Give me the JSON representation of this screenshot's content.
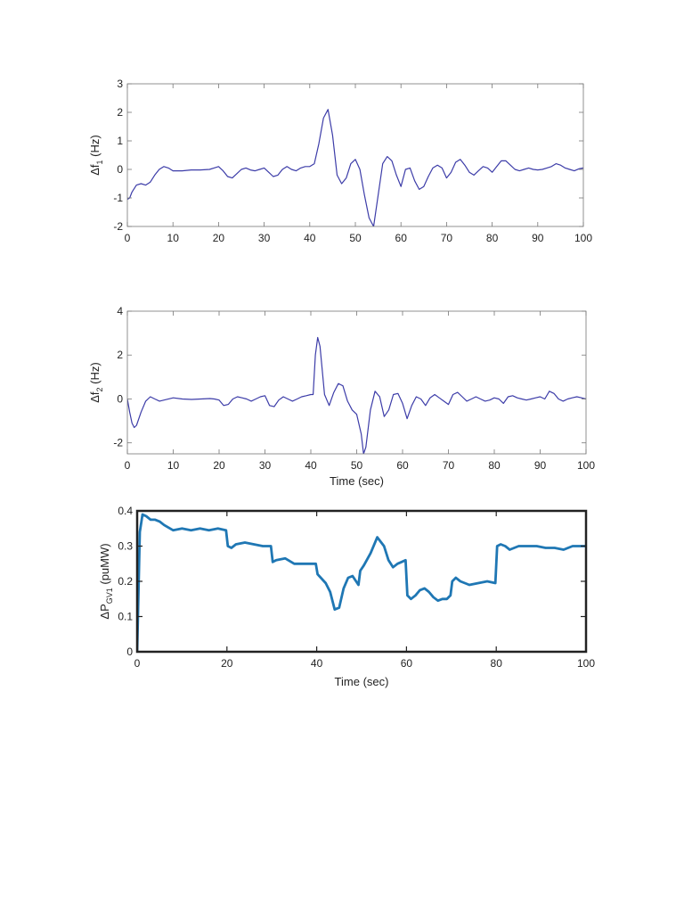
{
  "chart_data": [
    {
      "type": "line",
      "ylabel_main": "Δf",
      "ylabel_sub": "1",
      "ylabel_unit": " (Hz)",
      "xlabel": "",
      "xlim": [
        0,
        100
      ],
      "ylim": [
        -2,
        3
      ],
      "xticks": [
        0,
        10,
        20,
        30,
        40,
        50,
        60,
        70,
        80,
        90,
        100
      ],
      "yticks": [
        -2,
        -1,
        0,
        1,
        2,
        3
      ],
      "grid": false,
      "line_color": "#3c3ca8",
      "series": [
        {
          "x": [
            0,
            0.5,
            1,
            2,
            3,
            4,
            5,
            6,
            7,
            8,
            9,
            10,
            12,
            14,
            16,
            18,
            19,
            20,
            21,
            22,
            23,
            24,
            25,
            26,
            27,
            28,
            29,
            30,
            31,
            32,
            33,
            34,
            35,
            36,
            37,
            38,
            39,
            40,
            41,
            42,
            43,
            44,
            45,
            46,
            47,
            48,
            49,
            50,
            51,
            52,
            53,
            54,
            55,
            56,
            57,
            58,
            59,
            60,
            61,
            62,
            63,
            64,
            65,
            66,
            67,
            68,
            69,
            70,
            71,
            72,
            73,
            74,
            75,
            76,
            77,
            78,
            79,
            80,
            81,
            82,
            83,
            84,
            85,
            86,
            87,
            88,
            89,
            90,
            91,
            92,
            93,
            94,
            95,
            96,
            97,
            98,
            99,
            100
          ],
          "y": [
            -1.05,
            -1.0,
            -0.8,
            -0.55,
            -0.5,
            -0.55,
            -0.45,
            -0.2,
            0.0,
            0.1,
            0.05,
            -0.05,
            -0.05,
            -0.02,
            -0.02,
            0.0,
            0.05,
            0.1,
            -0.05,
            -0.25,
            -0.3,
            -0.15,
            0.0,
            0.05,
            -0.02,
            -0.05,
            0.0,
            0.05,
            -0.1,
            -0.25,
            -0.2,
            0.0,
            0.1,
            0.0,
            -0.05,
            0.05,
            0.1,
            0.1,
            0.2,
            0.9,
            1.8,
            2.1,
            1.2,
            -0.2,
            -0.5,
            -0.3,
            0.2,
            0.35,
            0.0,
            -0.9,
            -1.7,
            -2.0,
            -0.9,
            0.2,
            0.45,
            0.3,
            -0.2,
            -0.6,
            0.0,
            0.05,
            -0.4,
            -0.7,
            -0.6,
            -0.25,
            0.05,
            0.15,
            0.05,
            -0.3,
            -0.1,
            0.25,
            0.35,
            0.15,
            -0.1,
            -0.2,
            -0.05,
            0.1,
            0.05,
            -0.1,
            0.1,
            0.3,
            0.3,
            0.15,
            0.0,
            -0.05,
            0.0,
            0.05,
            0.0,
            -0.02,
            0.0,
            0.05,
            0.1,
            0.2,
            0.15,
            0.05,
            0.0,
            -0.05,
            0.02,
            0.05
          ]
        }
      ]
    },
    {
      "type": "line",
      "ylabel_main": "Δf",
      "ylabel_sub": "2",
      "ylabel_unit": " (Hz)",
      "xlabel": "Time (sec)",
      "xlim": [
        0,
        100
      ],
      "ylim": [
        -2.5,
        4
      ],
      "xticks": [
        0,
        10,
        20,
        30,
        40,
        50,
        60,
        70,
        80,
        90,
        100
      ],
      "yticks": [
        -2,
        0,
        2,
        4
      ],
      "grid": false,
      "line_color": "#3c3ca8",
      "series": [
        {
          "x": [
            0,
            0.5,
            1,
            1.5,
            2,
            3,
            4,
            5,
            6,
            7,
            8,
            10,
            12,
            14,
            16,
            18,
            19,
            20,
            21,
            22,
            23,
            24,
            25,
            26,
            27,
            28,
            29,
            30,
            31,
            32,
            33,
            34,
            35,
            36,
            37,
            38,
            39,
            40,
            40.5,
            41,
            41.5,
            42,
            43,
            44,
            45,
            46,
            47,
            48,
            49,
            50,
            51,
            51.5,
            52,
            53,
            54,
            55,
            56,
            57,
            58,
            59,
            60,
            61,
            62,
            63,
            64,
            65,
            66,
            67,
            68,
            69,
            70,
            71,
            72,
            73,
            74,
            75,
            76,
            77,
            78,
            79,
            80,
            81,
            82,
            83,
            84,
            85,
            86,
            87,
            88,
            89,
            90,
            91,
            92,
            93,
            94,
            95,
            96,
            97,
            98,
            99,
            100
          ],
          "y": [
            0.0,
            -0.6,
            -1.1,
            -1.3,
            -1.2,
            -0.6,
            -0.1,
            0.1,
            0.0,
            -0.1,
            -0.05,
            0.05,
            0.0,
            -0.02,
            0.0,
            0.02,
            0.0,
            -0.05,
            -0.3,
            -0.25,
            0.0,
            0.1,
            0.05,
            0.0,
            -0.1,
            0.0,
            0.1,
            0.15,
            -0.3,
            -0.35,
            -0.05,
            0.1,
            0.0,
            -0.1,
            0.0,
            0.1,
            0.15,
            0.2,
            0.2,
            2.0,
            2.8,
            2.4,
            0.2,
            -0.3,
            0.3,
            0.7,
            0.6,
            -0.1,
            -0.5,
            -0.7,
            -1.6,
            -2.5,
            -2.2,
            -0.5,
            0.35,
            0.1,
            -0.8,
            -0.5,
            0.2,
            0.25,
            -0.2,
            -0.9,
            -0.3,
            0.1,
            0.0,
            -0.3,
            0.05,
            0.2,
            0.05,
            -0.1,
            -0.25,
            0.2,
            0.3,
            0.1,
            -0.1,
            0.0,
            0.1,
            0.0,
            -0.1,
            -0.05,
            0.05,
            0.0,
            -0.2,
            0.1,
            0.15,
            0.05,
            0.0,
            -0.05,
            0.0,
            0.05,
            0.1,
            0.0,
            0.35,
            0.25,
            0.0,
            -0.1,
            0.0,
            0.05,
            0.1,
            0.05,
            0.0
          ]
        }
      ]
    },
    {
      "type": "line",
      "ylabel_main": "ΔP",
      "ylabel_sub": "GV1",
      "ylabel_unit": " (puMW)",
      "xlabel": "Time (sec)",
      "xlim": [
        0,
        100
      ],
      "ylim": [
        0,
        0.4
      ],
      "xticks": [
        0,
        20,
        40,
        60,
        80,
        100
      ],
      "yticks": [
        0,
        0.1,
        0.2,
        0.3,
        0.4
      ],
      "grid": false,
      "line_color": "#1f77b4",
      "series": [
        {
          "x": [
            0,
            0.6,
            1.2,
            2,
            3,
            4,
            5,
            6,
            8,
            10,
            12,
            14,
            16,
            18,
            19.8,
            20.2,
            21,
            22,
            24,
            26,
            28,
            29.8,
            30.2,
            31,
            33,
            35,
            37,
            39.8,
            40.2,
            42,
            43,
            44,
            45,
            46,
            47,
            48,
            49.3,
            49.7,
            50.5,
            52,
            53.5,
            55,
            56,
            57,
            58,
            59.8,
            60.2,
            61,
            62,
            63,
            64,
            65,
            66,
            67,
            68,
            69,
            69.8,
            70.2,
            71,
            72,
            74,
            76,
            78,
            79.8,
            80.2,
            81,
            82,
            83,
            85,
            87,
            89,
            91,
            93,
            95,
            97,
            99,
            100
          ],
          "y": [
            0.0,
            0.34,
            0.39,
            0.385,
            0.375,
            0.375,
            0.37,
            0.36,
            0.345,
            0.35,
            0.345,
            0.35,
            0.345,
            0.35,
            0.345,
            0.3,
            0.295,
            0.305,
            0.31,
            0.305,
            0.3,
            0.3,
            0.255,
            0.26,
            0.265,
            0.25,
            0.25,
            0.25,
            0.22,
            0.195,
            0.17,
            0.12,
            0.125,
            0.18,
            0.21,
            0.215,
            0.19,
            0.23,
            0.245,
            0.28,
            0.325,
            0.3,
            0.26,
            0.24,
            0.25,
            0.26,
            0.16,
            0.15,
            0.16,
            0.175,
            0.18,
            0.17,
            0.155,
            0.145,
            0.15,
            0.15,
            0.16,
            0.2,
            0.21,
            0.2,
            0.19,
            0.195,
            0.2,
            0.195,
            0.3,
            0.305,
            0.3,
            0.29,
            0.3,
            0.3,
            0.3,
            0.295,
            0.295,
            0.29,
            0.3,
            0.3,
            0.3
          ]
        }
      ]
    }
  ]
}
